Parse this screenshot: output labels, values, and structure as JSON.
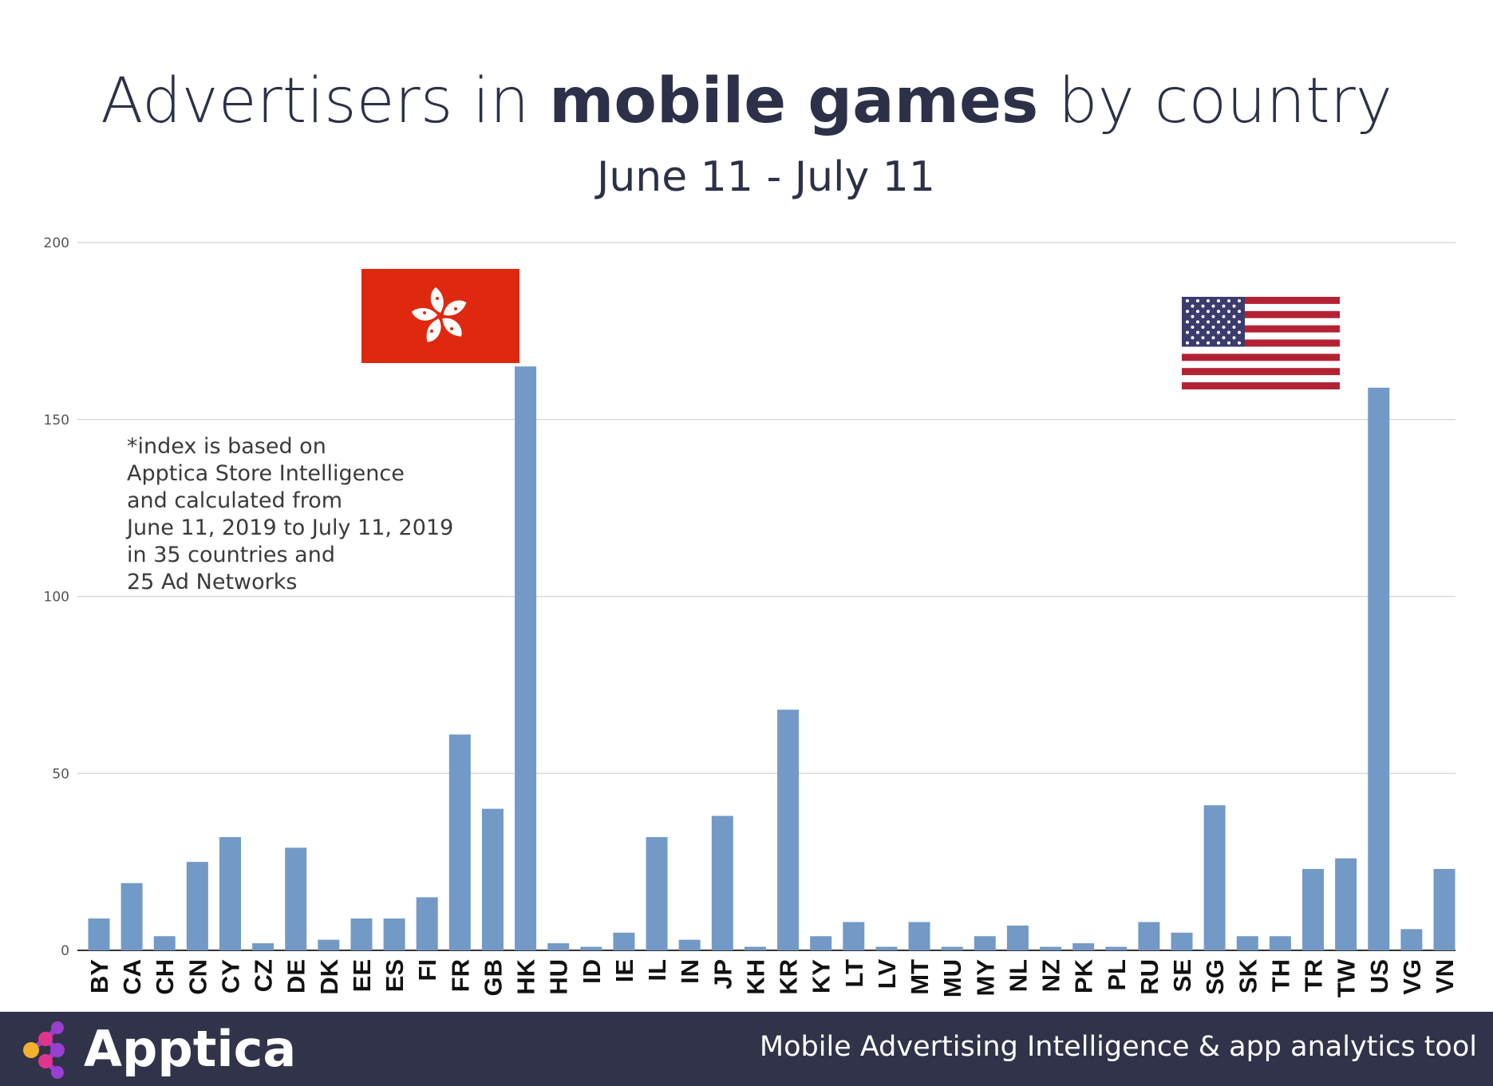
{
  "title": {
    "regular_1": "Advertisers in ",
    "bold": "mobile games",
    "regular_2": " by country"
  },
  "subtitle": "June 11 - July 11",
  "note": [
    "*index is based on",
    "Apptica Store Intelligence",
    "and calculated from",
    "June 11, 2019 to July 11, 2019",
    "in 35 countries and",
    "25 Ad Networks"
  ],
  "footer": {
    "brand": "Apptica",
    "tagline": "Mobile Advertising Intelligence & app analytics tool"
  },
  "colors": {
    "bar": "#7399c6",
    "footer_bg": "#303349",
    "title": "#2c3149",
    "grid": "#d9d9d9",
    "hk_flag_red": "#de2910",
    "us_flag_red": "#b22234",
    "us_flag_blue": "#3c3b6e"
  },
  "chart_data": {
    "type": "bar",
    "title": "Advertisers in mobile games by country",
    "subtitle": "June 11 - July 11",
    "xlabel": "",
    "ylabel": "",
    "ylim": [
      0,
      200
    ],
    "yticks": [
      0,
      50,
      100,
      150,
      200
    ],
    "grid": true,
    "categories": [
      "BY",
      "CA",
      "CH",
      "CN",
      "CY",
      "CZ",
      "DE",
      "DK",
      "EE",
      "ES",
      "FI",
      "FR",
      "GB",
      "HK",
      "HU",
      "ID",
      "IE",
      "IL",
      "IN",
      "JP",
      "KH",
      "KR",
      "KY",
      "LT",
      "LV",
      "MT",
      "MU",
      "MY",
      "NL",
      "NZ",
      "PK",
      "PL",
      "RU",
      "SE",
      "SG",
      "SK",
      "TH",
      "TR",
      "TW",
      "US",
      "VG",
      "VN"
    ],
    "values": [
      9,
      19,
      4,
      25,
      32,
      2,
      29,
      3,
      9,
      9,
      15,
      61,
      40,
      165,
      2,
      1,
      5,
      32,
      3,
      38,
      1,
      68,
      4,
      8,
      1,
      8,
      1,
      4,
      7,
      1,
      2,
      1,
      8,
      5,
      41,
      4,
      4,
      23,
      26,
      159,
      6,
      23
    ],
    "annotations": [
      {
        "category": "HK",
        "type": "flag",
        "flag": "hong-kong-flag"
      },
      {
        "category": "US",
        "type": "flag",
        "flag": "us-flag"
      }
    ]
  }
}
